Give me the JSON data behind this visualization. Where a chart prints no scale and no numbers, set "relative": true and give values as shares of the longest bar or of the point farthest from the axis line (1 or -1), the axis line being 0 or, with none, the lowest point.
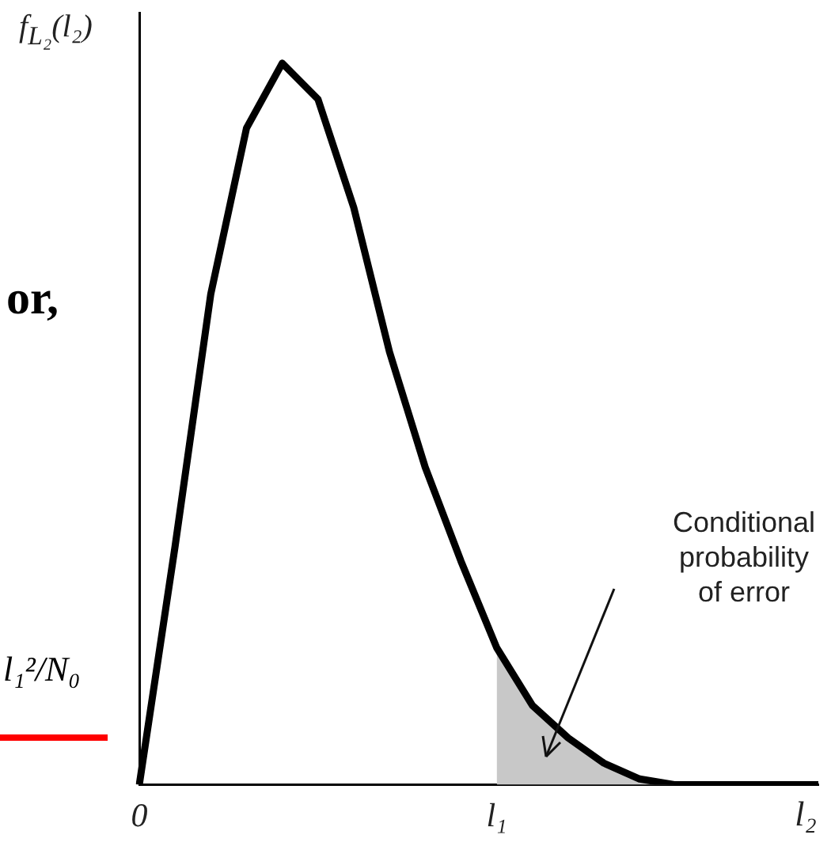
{
  "chart_data": {
    "type": "line",
    "ylabel": "f$_{L₂}$(l₂)",
    "xlabel": "l₂",
    "relative": true,
    "categories": [
      "0",
      null,
      null,
      null,
      null,
      null,
      null,
      null,
      null,
      null,
      "l₁",
      null,
      null,
      null,
      null,
      null,
      null,
      null,
      null,
      null
    ],
    "grid": false,
    "legend": false,
    "marker": "none",
    "series": [
      {
        "color": "#000000",
        "values": [
          0,
          0.33,
          0.68,
          0.91,
          1,
          0.95,
          0.8,
          0.6,
          0.44,
          0.31,
          0.19,
          0.11,
          0.065,
          0.03,
          0.008,
          0,
          0,
          0,
          0,
          0
        ]
      },
      {
        "type": "area",
        "color": "#c8c8c8",
        "values": [
          null,
          null,
          null,
          null,
          null,
          null,
          null,
          null,
          null,
          null,
          0.19,
          0.11,
          0.065,
          0.03,
          0.008,
          0,
          null,
          null,
          null,
          null
        ]
      }
    ],
    "annotations": [
      "or,",
      "l₁²/N₀",
      "Conditional\nprobability\nof error"
    ]
  }
}
